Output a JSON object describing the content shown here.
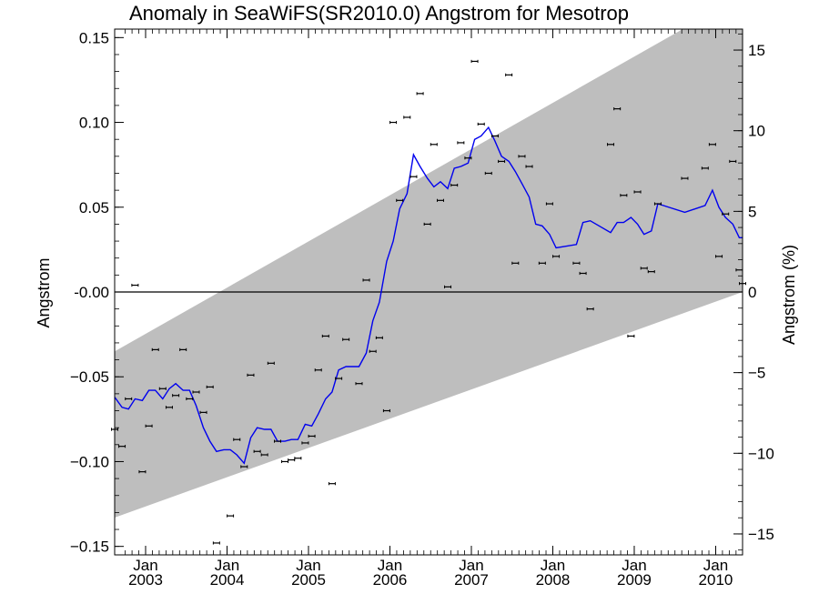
{
  "chart_data": {
    "type": "line",
    "title": "Anomaly in SeaWiFS(SR2010.0) Angstrom for Mesotrop",
    "ylabel": "Angstrom",
    "ylabel_right": "Angstrom (%)",
    "xlim": [
      2002.62,
      2010.33
    ],
    "ylim": [
      -0.155,
      0.155
    ],
    "ylim_right": [
      -16.3,
      16.3
    ],
    "x_ticks": [
      {
        "month": "Jan",
        "year": "2003",
        "x": 2003.0
      },
      {
        "month": "Jan",
        "year": "2004",
        "x": 2004.0
      },
      {
        "month": "Jan",
        "year": "2005",
        "x": 2005.0
      },
      {
        "month": "Jan",
        "year": "2006",
        "x": 2006.0
      },
      {
        "month": "Jan",
        "year": "2007",
        "x": 2007.0
      },
      {
        "month": "Jan",
        "year": "2008",
        "x": 2008.0
      },
      {
        "month": "Jan",
        "year": "2009",
        "x": 2009.0
      },
      {
        "month": "Jan",
        "year": "2010",
        "x": 2010.0
      }
    ],
    "y_ticks": [
      {
        "label": "0.15",
        "v": 0.15
      },
      {
        "label": "0.10",
        "v": 0.1
      },
      {
        "label": "0.05",
        "v": 0.05
      },
      {
        "label": "-0.00",
        "v": 0.0
      },
      {
        "label": "−0.05",
        "v": -0.05
      },
      {
        "label": "−0.10",
        "v": -0.1
      },
      {
        "label": "−0.15",
        "v": -0.15
      }
    ],
    "y_ticks_right": [
      {
        "label": "15",
        "v": 15
      },
      {
        "label": "10",
        "v": 10
      },
      {
        "label": "5",
        "v": 5
      },
      {
        "label": "0",
        "v": 0
      },
      {
        "label": "−5",
        "v": -5
      },
      {
        "label": "−10",
        "v": -10
      },
      {
        "label": "−15",
        "v": -15
      }
    ],
    "band": {
      "upper": [
        [
          2002.62,
          -0.035
        ],
        [
          2010.33,
          0.175
        ]
      ],
      "lower": [
        [
          2002.62,
          -0.133
        ],
        [
          2010.33,
          0.0
        ]
      ]
    },
    "series": [
      {
        "type": "errorbar-points",
        "color": "#000000",
        "points": [
          [
            2002.62,
            -0.081
          ],
          [
            2002.71,
            -0.091
          ],
          [
            2002.79,
            -0.063
          ],
          [
            2002.87,
            0.004
          ],
          [
            2002.96,
            -0.106
          ],
          [
            2003.04,
            -0.079
          ],
          [
            2003.12,
            -0.034
          ],
          [
            2003.21,
            -0.057
          ],
          [
            2003.29,
            -0.068
          ],
          [
            2003.37,
            -0.061
          ],
          [
            2003.46,
            -0.034
          ],
          [
            2003.54,
            -0.063
          ],
          [
            2003.62,
            -0.059
          ],
          [
            2003.71,
            -0.071
          ],
          [
            2003.79,
            -0.056
          ],
          [
            2003.87,
            -0.148
          ],
          [
            2004.04,
            -0.132
          ],
          [
            2004.12,
            -0.087
          ],
          [
            2004.21,
            -0.103
          ],
          [
            2004.29,
            -0.049
          ],
          [
            2004.37,
            -0.094
          ],
          [
            2004.46,
            -0.096
          ],
          [
            2004.54,
            -0.042
          ],
          [
            2004.62,
            -0.088
          ],
          [
            2004.71,
            -0.1
          ],
          [
            2004.79,
            -0.099
          ],
          [
            2004.87,
            -0.098
          ],
          [
            2004.96,
            -0.089
          ],
          [
            2005.04,
            -0.085
          ],
          [
            2005.12,
            -0.046
          ],
          [
            2005.21,
            -0.026
          ],
          [
            2005.29,
            -0.113
          ],
          [
            2005.37,
            -0.051
          ],
          [
            2005.46,
            -0.028
          ],
          [
            2005.62,
            -0.054
          ],
          [
            2005.71,
            0.007
          ],
          [
            2005.79,
            -0.035
          ],
          [
            2005.87,
            -0.027
          ],
          [
            2005.96,
            -0.07
          ],
          [
            2006.04,
            0.1
          ],
          [
            2006.12,
            0.054
          ],
          [
            2006.21,
            0.103
          ],
          [
            2006.29,
            0.068
          ],
          [
            2006.37,
            0.117
          ],
          [
            2006.46,
            0.04
          ],
          [
            2006.54,
            0.087
          ],
          [
            2006.62,
            0.054
          ],
          [
            2006.71,
            0.003
          ],
          [
            2006.79,
            0.063
          ],
          [
            2006.87,
            0.088
          ],
          [
            2006.96,
            0.079
          ],
          [
            2007.04,
            0.136
          ],
          [
            2007.12,
            0.099
          ],
          [
            2007.21,
            0.07
          ],
          [
            2007.29,
            0.092
          ],
          [
            2007.37,
            0.077
          ],
          [
            2007.46,
            0.128
          ],
          [
            2007.54,
            0.017
          ],
          [
            2007.62,
            0.08
          ],
          [
            2007.71,
            0.074
          ],
          [
            2007.87,
            0.017
          ],
          [
            2007.96,
            0.052
          ],
          [
            2008.04,
            0.021
          ],
          [
            2008.29,
            0.017
          ],
          [
            2008.37,
            0.011
          ],
          [
            2008.46,
            -0.01
          ],
          [
            2008.71,
            0.087
          ],
          [
            2008.79,
            0.108
          ],
          [
            2008.87,
            0.057
          ],
          [
            2008.96,
            -0.026
          ],
          [
            2009.04,
            0.059
          ],
          [
            2009.12,
            0.014
          ],
          [
            2009.21,
            0.012
          ],
          [
            2009.29,
            0.052
          ],
          [
            2009.62,
            0.067
          ],
          [
            2009.87,
            0.073
          ],
          [
            2009.96,
            0.087
          ],
          [
            2010.04,
            0.021
          ],
          [
            2010.12,
            0.046
          ],
          [
            2010.21,
            0.077
          ],
          [
            2010.29,
            0.013
          ],
          [
            2010.33,
            0.005
          ]
        ]
      },
      {
        "type": "line",
        "color": "#0000ee",
        "points": [
          [
            2002.62,
            -0.062
          ],
          [
            2002.71,
            -0.068
          ],
          [
            2002.79,
            -0.069
          ],
          [
            2002.87,
            -0.063
          ],
          [
            2002.96,
            -0.064
          ],
          [
            2003.04,
            -0.058
          ],
          [
            2003.12,
            -0.058
          ],
          [
            2003.21,
            -0.063
          ],
          [
            2003.29,
            -0.057
          ],
          [
            2003.37,
            -0.054
          ],
          [
            2003.46,
            -0.058
          ],
          [
            2003.54,
            -0.058
          ],
          [
            2003.62,
            -0.067
          ],
          [
            2003.71,
            -0.08
          ],
          [
            2003.79,
            -0.088
          ],
          [
            2003.87,
            -0.094
          ],
          [
            2003.96,
            -0.093
          ],
          [
            2004.04,
            -0.093
          ],
          [
            2004.12,
            -0.096
          ],
          [
            2004.21,
            -0.101
          ],
          [
            2004.29,
            -0.086
          ],
          [
            2004.37,
            -0.08
          ],
          [
            2004.46,
            -0.081
          ],
          [
            2004.54,
            -0.081
          ],
          [
            2004.62,
            -0.088
          ],
          [
            2004.71,
            -0.088
          ],
          [
            2004.79,
            -0.087
          ],
          [
            2004.87,
            -0.087
          ],
          [
            2004.96,
            -0.078
          ],
          [
            2005.04,
            -0.079
          ],
          [
            2005.12,
            -0.072
          ],
          [
            2005.21,
            -0.063
          ],
          [
            2005.29,
            -0.059
          ],
          [
            2005.37,
            -0.046
          ],
          [
            2005.46,
            -0.044
          ],
          [
            2005.54,
            -0.044
          ],
          [
            2005.62,
            -0.044
          ],
          [
            2005.71,
            -0.036
          ],
          [
            2005.79,
            -0.017
          ],
          [
            2005.87,
            -0.006
          ],
          [
            2005.96,
            0.018
          ],
          [
            2006.04,
            0.03
          ],
          [
            2006.12,
            0.049
          ],
          [
            2006.21,
            0.058
          ],
          [
            2006.29,
            0.081
          ],
          [
            2006.37,
            0.074
          ],
          [
            2006.46,
            0.067
          ],
          [
            2006.54,
            0.062
          ],
          [
            2006.62,
            0.065
          ],
          [
            2006.71,
            0.061
          ],
          [
            2006.79,
            0.073
          ],
          [
            2006.87,
            0.074
          ],
          [
            2006.96,
            0.076
          ],
          [
            2007.04,
            0.09
          ],
          [
            2007.12,
            0.092
          ],
          [
            2007.21,
            0.097
          ],
          [
            2007.29,
            0.089
          ],
          [
            2007.37,
            0.08
          ],
          [
            2007.46,
            0.077
          ],
          [
            2007.54,
            0.071
          ],
          [
            2007.62,
            0.064
          ],
          [
            2007.71,
            0.056
          ],
          [
            2007.79,
            0.04
          ],
          [
            2007.87,
            0.039
          ],
          [
            2007.96,
            0.034
          ],
          [
            2008.04,
            0.026
          ],
          [
            2008.29,
            0.028
          ],
          [
            2008.37,
            0.041
          ],
          [
            2008.46,
            0.042
          ],
          [
            2008.71,
            0.035
          ],
          [
            2008.79,
            0.041
          ],
          [
            2008.87,
            0.041
          ],
          [
            2008.96,
            0.044
          ],
          [
            2009.04,
            0.04
          ],
          [
            2009.12,
            0.034
          ],
          [
            2009.21,
            0.036
          ],
          [
            2009.29,
            0.052
          ],
          [
            2009.62,
            0.047
          ],
          [
            2009.87,
            0.051
          ],
          [
            2009.96,
            0.06
          ],
          [
            2010.04,
            0.05
          ],
          [
            2010.12,
            0.044
          ],
          [
            2010.21,
            0.04
          ],
          [
            2010.29,
            0.032
          ],
          [
            2010.33,
            0.032
          ]
        ]
      }
    ]
  }
}
